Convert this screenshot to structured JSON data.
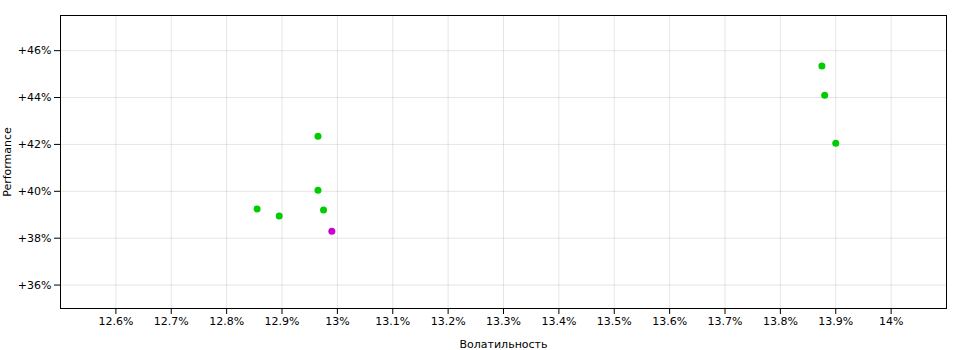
{
  "chart_data": {
    "type": "scatter",
    "xlabel": "Волатильность",
    "ylabel": "Performance",
    "x": [
      12.855,
      12.895,
      12.965,
      12.965,
      12.975,
      12.99,
      13.875,
      13.88,
      13.9
    ],
    "values": [
      39.25,
      38.95,
      42.35,
      40.05,
      39.2,
      38.3,
      45.35,
      44.1,
      42.05
    ],
    "colors": [
      "#00cc00",
      "#00cc00",
      "#00cc00",
      "#00cc00",
      "#00cc00",
      "#cc00cc",
      "#00cc00",
      "#00cc00",
      "#00cc00"
    ],
    "marker": "circle",
    "xlim": [
      12.5,
      14.1
    ],
    "ylim": [
      35.0,
      47.5
    ],
    "xticks": [
      {
        "value": 12.6,
        "label": "12.6%"
      },
      {
        "value": 12.7,
        "label": "12.7%"
      },
      {
        "value": 12.8,
        "label": "12.8%"
      },
      {
        "value": 12.9,
        "label": "12.9%"
      },
      {
        "value": 13.0,
        "label": "13%"
      },
      {
        "value": 13.1,
        "label": "13.1%"
      },
      {
        "value": 13.2,
        "label": "13.2%"
      },
      {
        "value": 13.3,
        "label": "13.3%"
      },
      {
        "value": 13.4,
        "label": "13.4%"
      },
      {
        "value": 13.5,
        "label": "13.5%"
      },
      {
        "value": 13.6,
        "label": "13.6%"
      },
      {
        "value": 13.7,
        "label": "13.7%"
      },
      {
        "value": 13.8,
        "label": "13.8%"
      },
      {
        "value": 13.9,
        "label": "13.9%"
      },
      {
        "value": 14.0,
        "label": "14%"
      }
    ],
    "yticks": [
      {
        "value": 36,
        "label": "+36%"
      },
      {
        "value": 38,
        "label": "+38%"
      },
      {
        "value": 40,
        "label": "+40%"
      },
      {
        "value": 42,
        "label": "+42%"
      },
      {
        "value": 44,
        "label": "+44%"
      },
      {
        "value": 46,
        "label": "+46%"
      }
    ],
    "grid": true
  }
}
